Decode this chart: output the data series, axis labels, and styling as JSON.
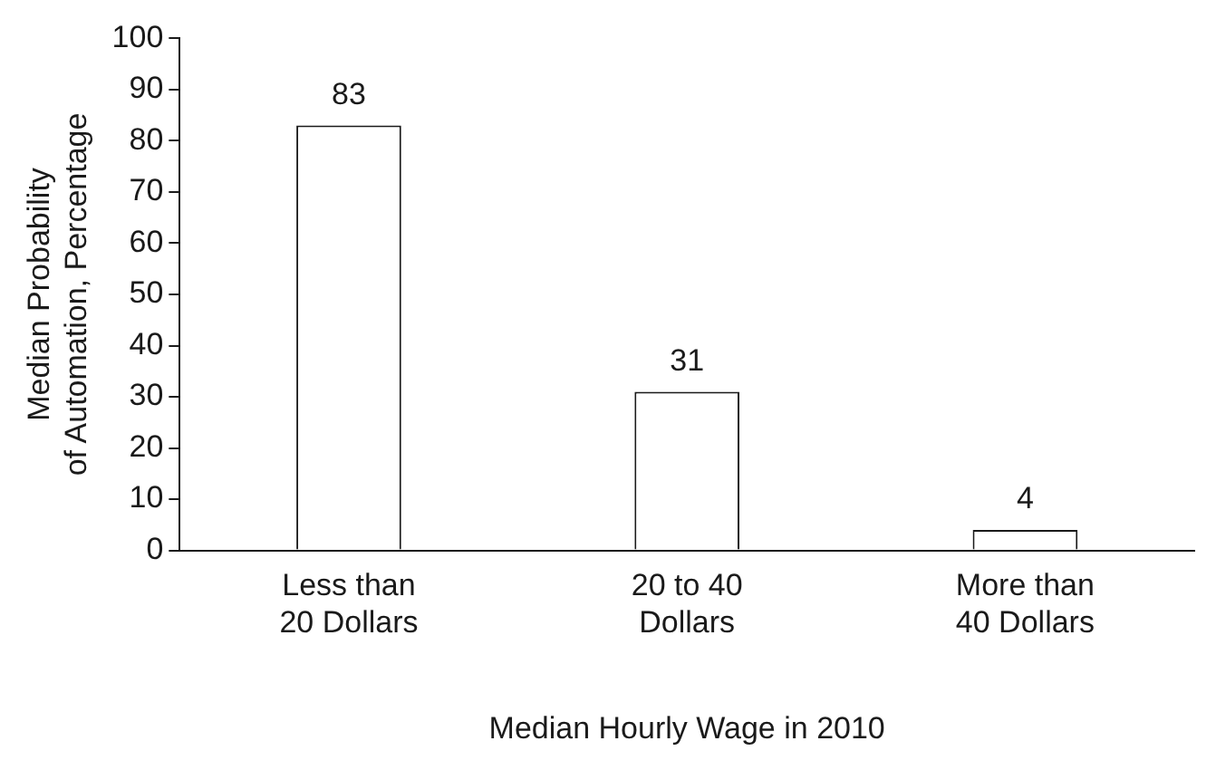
{
  "chart_data": {
    "type": "bar",
    "xlabel": "Median Hourly Wage in 2010",
    "ylabel": "Median Probability of Automation, Percentage",
    "categories": [
      "Less than 20 Dollars",
      "20 to 40 Dollars",
      "More than 40 Dollars"
    ],
    "values": [
      83,
      31,
      4
    ],
    "color": "#ffffff",
    "data_labels": true,
    "ylim": [
      0,
      100
    ],
    "yticks": [
      0,
      10,
      20,
      30,
      40,
      50,
      60,
      70,
      80,
      90,
      100
    ],
    "grid": false,
    "legend": false
  }
}
